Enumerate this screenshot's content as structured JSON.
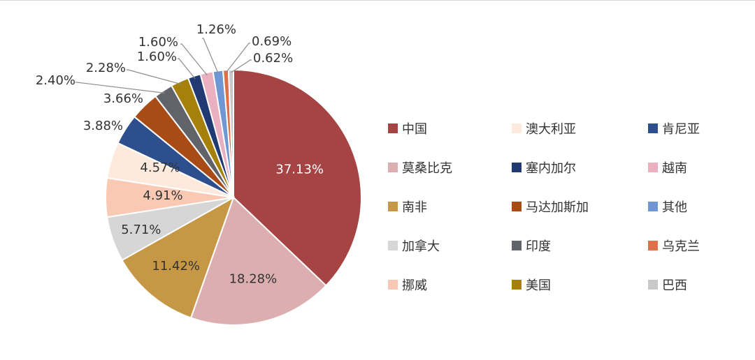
{
  "chart_data": {
    "type": "pie",
    "slices": [
      {
        "name": "中国",
        "value": 37.13,
        "label": "37.13%",
        "color": "#a64444"
      },
      {
        "name": "莫桑比克",
        "value": 18.28,
        "label": "18.28%",
        "color": "#ddaeb0"
      },
      {
        "name": "南非",
        "value": 11.42,
        "label": "11.42%",
        "color": "#c69845"
      },
      {
        "name": "加拿大",
        "value": 5.71,
        "label": "5.71%",
        "color": "#d6d6d6"
      },
      {
        "name": "挪威",
        "value": 4.91,
        "label": "4.91%",
        "color": "#f9c9b4"
      },
      {
        "name": "澳大利亚",
        "value": 4.57,
        "label": "4.57%",
        "color": "#fdeadd"
      },
      {
        "name": "肯尼亚",
        "value": 3.88,
        "label": "3.88%",
        "color": "#2e4f8d"
      },
      {
        "name": "马达加斯加",
        "value": 3.66,
        "label": "3.66%",
        "color": "#a84b15"
      },
      {
        "name": "印度",
        "value": 2.4,
        "label": "2.40%",
        "color": "#62636a"
      },
      {
        "name": "美国",
        "value": 2.28,
        "label": "2.28%",
        "color": "#a5800a"
      },
      {
        "name": "塞内加尔",
        "value": 1.6,
        "label": "1.60%",
        "color": "#213a72"
      },
      {
        "name": "越南",
        "value": 1.6,
        "label": "1.60%",
        "color": "#e8b0c0"
      },
      {
        "name": "其他",
        "value": 1.26,
        "label": "1.26%",
        "color": "#6f97d3"
      },
      {
        "name": "乌克兰",
        "value": 0.69,
        "label": "0.69%",
        "color": "#dd7048"
      },
      {
        "name": "巴西",
        "value": 0.62,
        "label": "0.62%",
        "color": "#c8c8c8"
      }
    ],
    "legend": {
      "placement": "right",
      "columns": [
        [
          "中国",
          "莫桑比克",
          "南非",
          "加拿大",
          "挪威"
        ],
        [
          "澳大利亚",
          "塞内加尔",
          "马达加斯加",
          "印度",
          "美国"
        ],
        [
          "肯尼亚",
          "越南",
          "其他",
          "乌克兰",
          "巴西"
        ]
      ]
    },
    "title": ""
  }
}
